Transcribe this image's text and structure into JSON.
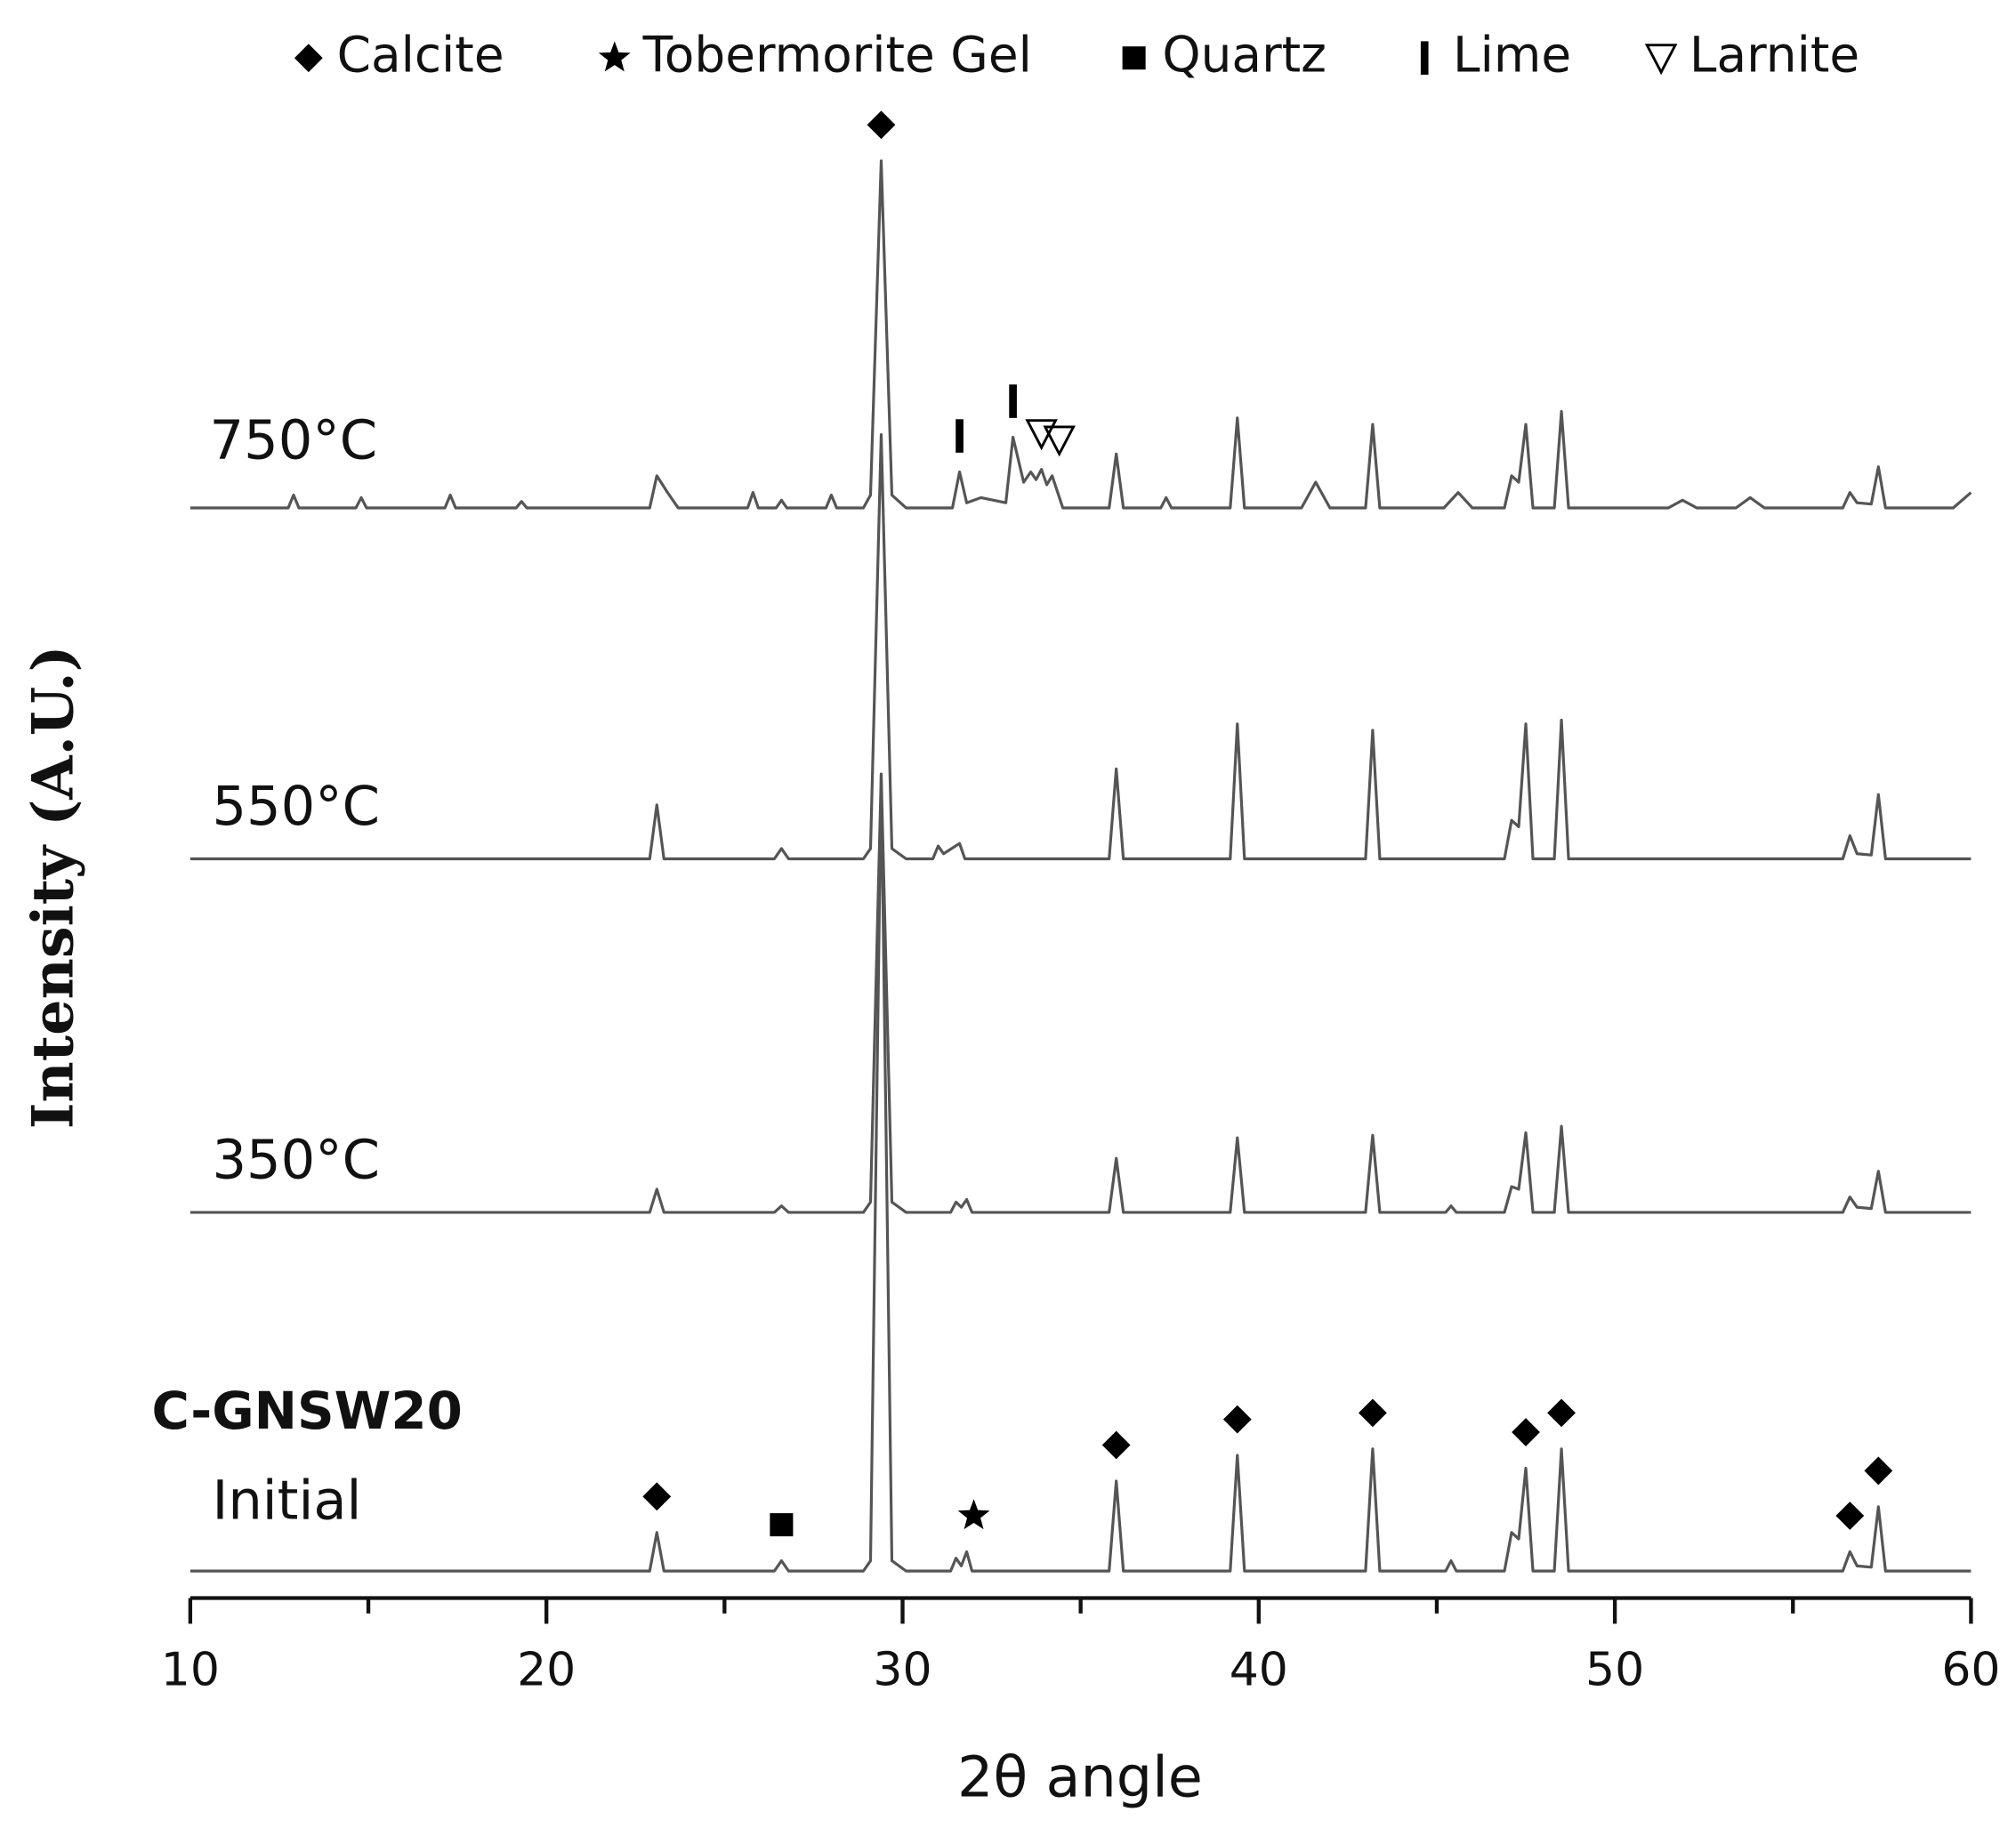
{
  "chart_data": {
    "type": "line",
    "xlabel": "2θ angle",
    "ylabel": "Intensity (A.U.)",
    "xlim": [
      10,
      60
    ],
    "xticks": [
      10,
      20,
      30,
      40,
      50,
      60
    ],
    "xticks_minor": [
      15,
      25,
      35,
      45,
      55
    ],
    "sample_label": "C-GNSW20",
    "phases": [
      {
        "name": "Calcite",
        "marker": "diamond"
      },
      {
        "name": "Tobermorite Gel",
        "marker": "star"
      },
      {
        "name": "Quartz",
        "marker": "square"
      },
      {
        "name": "Lime",
        "marker": "bar"
      },
      {
        "name": "Larnite",
        "marker": "triangle-down"
      }
    ],
    "series": [
      {
        "name": "Initial",
        "color": "#555555",
        "x": [
          10,
          22.9,
          23.1,
          23.3,
          26.4,
          26.6,
          26.8,
          28.9,
          29.1,
          29.4,
          29.7,
          30.1,
          31.35,
          31.5,
          31.65,
          31.8,
          31.95,
          35.8,
          36,
          36.2,
          39.2,
          39.4,
          39.6,
          43,
          43.2,
          43.4,
          45.25,
          45.4,
          45.55,
          46.9,
          47.1,
          47.3,
          47.5,
          47.7,
          48.3,
          48.5,
          48.7,
          56.4,
          56.6,
          56.8,
          57.2,
          57.4,
          57.6,
          60
        ],
        "values": [
          0,
          0,
          30,
          0,
          0,
          8,
          0,
          0,
          8,
          620,
          8,
          0,
          0,
          10,
          4,
          15,
          0,
          0,
          70,
          0,
          0,
          90,
          0,
          0,
          95,
          0,
          0,
          8,
          0,
          0,
          30,
          25,
          80,
          0,
          0,
          95,
          0,
          0,
          15,
          4,
          3,
          50,
          0,
          0
        ]
      },
      {
        "name": "350°C",
        "color": "#555555",
        "x": [
          10,
          22.9,
          23.1,
          23.3,
          26.4,
          26.6,
          26.8,
          28.9,
          29.1,
          29.4,
          29.7,
          30.1,
          31.35,
          31.5,
          31.65,
          31.8,
          31.95,
          35.8,
          36,
          36.2,
          39.2,
          39.4,
          39.6,
          43,
          43.2,
          43.4,
          45.25,
          45.4,
          45.55,
          46.9,
          47.1,
          47.3,
          47.5,
          47.7,
          48.3,
          48.5,
          48.7,
          56.4,
          56.6,
          56.8,
          57.2,
          57.4,
          57.6,
          60
        ],
        "values": [
          0,
          0,
          18,
          0,
          0,
          5,
          0,
          0,
          8,
          340,
          8,
          0,
          0,
          8,
          4,
          10,
          0,
          0,
          42,
          0,
          0,
          58,
          0,
          0,
          60,
          0,
          0,
          5,
          0,
          0,
          20,
          18,
          62,
          0,
          0,
          67,
          0,
          0,
          12,
          4,
          3,
          32,
          0,
          0
        ]
      },
      {
        "name": "550°C",
        "color": "#555555",
        "x": [
          10,
          22.9,
          23.1,
          23.3,
          26.4,
          26.6,
          26.8,
          28.9,
          29.1,
          29.4,
          29.7,
          30.1,
          30.85,
          31,
          31.15,
          31.6,
          31.75,
          35.8,
          36,
          36.2,
          39.2,
          39.4,
          39.6,
          43,
          43.2,
          43.4,
          46.9,
          47.1,
          47.3,
          47.5,
          47.7,
          48.3,
          48.5,
          48.7,
          56.4,
          56.6,
          56.8,
          57.2,
          57.4,
          57.6,
          60
        ],
        "values": [
          0,
          0,
          42,
          0,
          0,
          8,
          0,
          0,
          8,
          330,
          8,
          0,
          0,
          10,
          4,
          12,
          0,
          0,
          70,
          0,
          0,
          105,
          0,
          0,
          100,
          0,
          0,
          30,
          25,
          105,
          0,
          0,
          108,
          0,
          0,
          18,
          4,
          3,
          50,
          0,
          0
        ]
      },
      {
        "name": "750°C",
        "color": "#555555",
        "x": [
          10,
          12.75,
          12.9,
          13.05,
          14.65,
          14.8,
          14.95,
          17.15,
          17.3,
          17.45,
          19.15,
          19.3,
          19.45,
          22.9,
          23.1,
          23.4,
          23.7,
          25.65,
          25.8,
          25.95,
          26.45,
          26.6,
          26.75,
          27.85,
          28,
          28.15,
          28.9,
          29.1,
          29.4,
          29.7,
          30.1,
          31.4,
          31.6,
          31.8,
          32.2,
          32.9,
          33.1,
          33.4,
          33.6,
          33.75,
          33.9,
          34.05,
          34.2,
          34.5,
          35.8,
          36,
          36.2,
          37.25,
          37.4,
          37.55,
          39.2,
          39.4,
          39.6,
          41.2,
          41.6,
          42,
          43,
          43.2,
          43.4,
          45.2,
          45.6,
          46,
          46.9,
          47.1,
          47.3,
          47.5,
          47.7,
          48.3,
          48.5,
          48.7,
          51.5,
          51.9,
          52.3,
          53.4,
          53.8,
          54.2,
          56.4,
          56.6,
          56.8,
          57.2,
          57.4,
          57.6,
          59.5,
          60
        ],
        "values": [
          0,
          0,
          10,
          0,
          0,
          8,
          0,
          0,
          10,
          0,
          0,
          5,
          0,
          0,
          25,
          12,
          0,
          0,
          12,
          0,
          0,
          6,
          0,
          0,
          10,
          0,
          0,
          10,
          270,
          10,
          0,
          0,
          28,
          4,
          8,
          4,
          55,
          20,
          28,
          22,
          30,
          18,
          25,
          0,
          0,
          42,
          0,
          0,
          8,
          0,
          0,
          70,
          0,
          0,
          20,
          0,
          0,
          65,
          0,
          0,
          12,
          0,
          0,
          25,
          20,
          65,
          0,
          0,
          75,
          0,
          0,
          6,
          0,
          0,
          8,
          0,
          0,
          12,
          4,
          3,
          32,
          0,
          0,
          12
        ]
      }
    ],
    "annotations": [
      {
        "phase": 0,
        "series": 3,
        "x": 29.4
      },
      {
        "phase": 0,
        "series": 0,
        "x": 23.1
      },
      {
        "phase": 2,
        "series": 0,
        "x": 26.6
      },
      {
        "phase": 1,
        "series": 0,
        "x": 32
      },
      {
        "phase": 0,
        "series": 0,
        "x": 36
      },
      {
        "phase": 0,
        "series": 0,
        "x": 39.4
      },
      {
        "phase": 0,
        "series": 0,
        "x": 43.2
      },
      {
        "phase": 0,
        "series": 0,
        "x": 47.5
      },
      {
        "phase": 0,
        "series": 0,
        "x": 48.5
      },
      {
        "phase": 0,
        "series": 0,
        "x": 56.6
      },
      {
        "phase": 0,
        "series": 0,
        "x": 57.4
      },
      {
        "phase": 3,
        "series": 3,
        "x": 31.6
      },
      {
        "phase": 3,
        "series": 3,
        "x": 33.1
      },
      {
        "phase": 4,
        "series": 3,
        "x": 33.9
      },
      {
        "phase": 4,
        "series": 3,
        "x": 34.4
      }
    ]
  }
}
